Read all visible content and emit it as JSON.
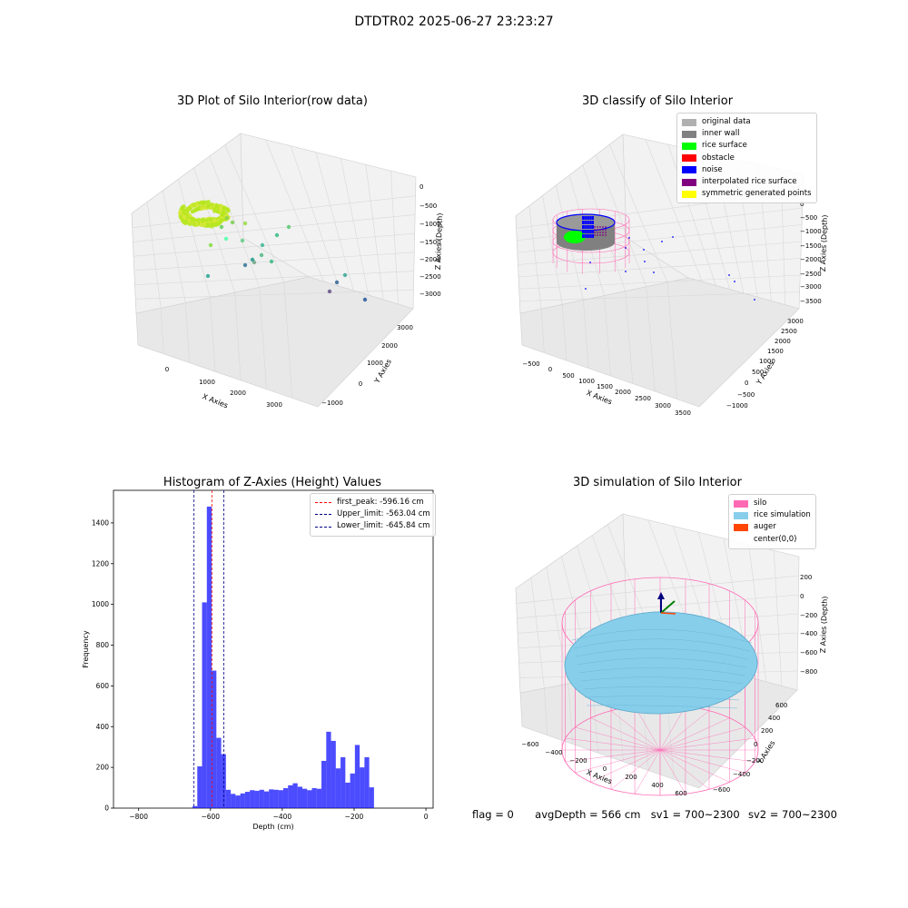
{
  "suptitle": "DTDTR02 2025-06-27 23:23:27",
  "panels": {
    "raw": {
      "title": "3D Plot of Silo Interior(row data)",
      "xlabel": "X Axies",
      "ylabel": "Y Axies",
      "zlabel": "Z Axies (Depth)",
      "xticks": [
        "0",
        "1000",
        "2000",
        "3000"
      ],
      "yticks": [
        "−1000",
        "0",
        "1000",
        "2000",
        "3000"
      ],
      "zticks": [
        "0",
        "−500",
        "−1000",
        "−1500",
        "−2000",
        "−2500",
        "−3000"
      ]
    },
    "classify": {
      "title": "3D classify of Silo Interior",
      "xlabel": "X Axies",
      "ylabel": "Y Axies",
      "zlabel": "Z Axies (Depth)",
      "xticks": [
        "−500",
        "0",
        "500",
        "1000",
        "1500",
        "2000",
        "2500",
        "3000",
        "3500"
      ],
      "yticks": [
        "−1000",
        "−500",
        "0",
        "500",
        "1000",
        "1500",
        "2000",
        "2500",
        "3000"
      ],
      "zticks": [
        "0",
        "−500",
        "−1000",
        "−1500",
        "−2000",
        "−2500",
        "−3000",
        "−3500"
      ],
      "legend": [
        {
          "label": "original data",
          "color": "#b0b0b0"
        },
        {
          "label": "inner wall",
          "color": "#808080"
        },
        {
          "label": "rice surface",
          "color": "#00ff00"
        },
        {
          "label": "obstacle",
          "color": "#ff0000"
        },
        {
          "label": "noise",
          "color": "#0000ff"
        },
        {
          "label": "interpolated rice surface",
          "color": "#800080"
        },
        {
          "label": "symmetric generated points",
          "color": "#ffff00"
        }
      ]
    },
    "sim": {
      "title": "3D simulation of Silo Interior",
      "xlabel": "X Axies",
      "ylabel": "Y Axies",
      "zlabel": "Z Axies (Depth)",
      "xticks": [
        "−600",
        "−400",
        "−200",
        "0",
        "200",
        "400",
        "600"
      ],
      "yticks": [
        "−600",
        "−400",
        "−200",
        "0",
        "200",
        "400",
        "600"
      ],
      "zticks": [
        "200",
        "0",
        "−200",
        "−400",
        "−600",
        "−800"
      ],
      "legend": [
        {
          "label": "silo",
          "color": "#ff69b4"
        },
        {
          "label": "rice simulation",
          "color": "#87ceeb"
        },
        {
          "label": "auger",
          "color": "#ff4500"
        },
        {
          "label": "center(0,0)",
          "color": ""
        }
      ]
    }
  },
  "chart_data": {
    "type": "bar",
    "title": "Histogram of Z-Axies (Height) Values",
    "xlabel": "Depth (cm)",
    "ylabel": "Frequency",
    "xlim": [
      -870,
      20
    ],
    "ylim": [
      0,
      1560
    ],
    "xticks": [
      "−800",
      "−600",
      "−400",
      "−200",
      "0"
    ],
    "yticks": [
      "0",
      "200",
      "400",
      "600",
      "800",
      "1000",
      "1200",
      "1400"
    ],
    "bin_width": 13.3,
    "bin_start": -650,
    "values": [
      10,
      205,
      1010,
      1480,
      675,
      345,
      265,
      90,
      70,
      62,
      72,
      80,
      88,
      85,
      90,
      82,
      92,
      90,
      88,
      98,
      112,
      122,
      105,
      95,
      88,
      98,
      95,
      232,
      375,
      330,
      195,
      250,
      125,
      170,
      310,
      200,
      250,
      102
    ],
    "bar_color": "#0000ff",
    "vlines": [
      {
        "label": "first_peak: -596.16 cm",
        "x": -596.16,
        "color": "#ff0000"
      },
      {
        "label": "Upper_limit: -563.04 cm",
        "x": -563.04,
        "color": "#00008b"
      },
      {
        "label": "Lower_limit: -645.84 cm",
        "x": -645.84,
        "color": "#00008b"
      }
    ],
    "legend_position": "upper right"
  },
  "status": {
    "flag": "flag = 0",
    "avg": "avgDepth = 566 cm",
    "sv1": "sv1 = 700~2300",
    "sv2": "sv2 = 700~2300"
  }
}
